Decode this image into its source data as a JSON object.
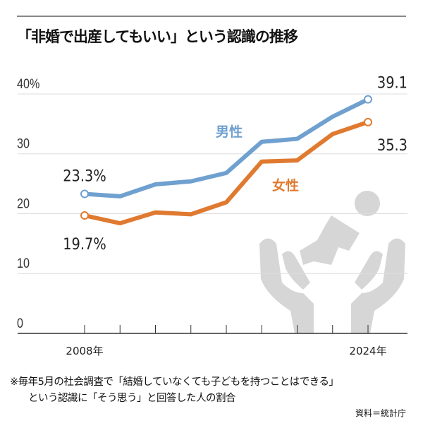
{
  "title": "「非婚で出産してもいい」という認識の推移",
  "notes": {
    "line1": "※毎年5月の社会調査で「結婚していなくても子どもを持つことはできる」",
    "line2": "という認識に「そう思う」と回答した人の割合",
    "source": "資料＝統計庁"
  },
  "chart_data": {
    "type": "line",
    "title": "「非婚で出産してもいい」という認識の推移",
    "x": [
      2008,
      2010,
      2012,
      2014,
      2016,
      2018,
      2020,
      2022,
      2024
    ],
    "x_tick_labels": [
      "2008年",
      "2024年"
    ],
    "y_tick_labels": [
      "40%",
      "30",
      "20",
      "10",
      "0"
    ],
    "y_ticks": [
      40,
      30,
      20,
      10,
      0
    ],
    "ylim": [
      0,
      40
    ],
    "grid": true,
    "series": [
      {
        "name": "男性",
        "color": "#6fa0cf",
        "values": [
          23.3,
          22.9,
          24.9,
          25.4,
          26.8,
          32.0,
          32.5,
          36.2,
          39.1
        ],
        "start_label": "23.3%",
        "end_label": "39.1"
      },
      {
        "name": "女性",
        "color": "#e07a30",
        "values": [
          19.7,
          18.4,
          20.2,
          19.9,
          21.9,
          28.7,
          28.9,
          33.3,
          35.3
        ],
        "start_label": "19.7%",
        "end_label": "35.3"
      }
    ]
  }
}
